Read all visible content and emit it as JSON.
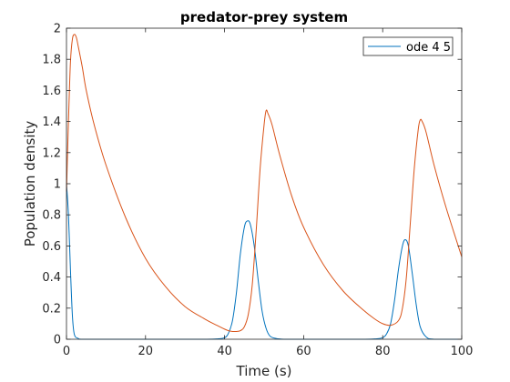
{
  "chart_data": {
    "type": "line",
    "title": "predator-prey system",
    "xlabel": "Time (s)",
    "ylabel": "Population density",
    "xlim": [
      0,
      100
    ],
    "ylim": [
      0,
      2
    ],
    "x_ticks": [
      "0",
      "20",
      "40",
      "60",
      "80",
      "100"
    ],
    "y_ticks": [
      "0",
      "0.2",
      "0.4",
      "0.6",
      "0.8",
      "1",
      "1.2",
      "1.4",
      "1.6",
      "1.8",
      "2"
    ],
    "grid": false,
    "legend_position": "top-right",
    "legend_entries": [
      "ode 4 5"
    ],
    "series": [
      {
        "name": "ode 4 5",
        "color": "#0072BD",
        "x": [
          0,
          0.5,
          1,
          1.5,
          2,
          3,
          4,
          10,
          20,
          30,
          35,
          38,
          40,
          41,
          42,
          43,
          44,
          45,
          45.7,
          46.5,
          47.5,
          48.5,
          49.5,
          50.5,
          51.5,
          53,
          55,
          60,
          70,
          75,
          78,
          80,
          81,
          82,
          83,
          84,
          85,
          85.7,
          86.5,
          87.5,
          88.5,
          89.5,
          91,
          93,
          100
        ],
        "values": [
          1.0,
          0.8,
          0.45,
          0.15,
          0.03,
          0.005,
          0,
          0,
          0,
          0,
          0,
          0.002,
          0.01,
          0.04,
          0.12,
          0.3,
          0.55,
          0.72,
          0.76,
          0.74,
          0.6,
          0.38,
          0.18,
          0.07,
          0.02,
          0.005,
          0,
          0,
          0,
          0,
          0.002,
          0.01,
          0.035,
          0.1,
          0.25,
          0.45,
          0.6,
          0.64,
          0.6,
          0.42,
          0.22,
          0.08,
          0.015,
          0,
          0
        ]
      },
      {
        "color": "#D95319",
        "x": [
          0,
          0.5,
          1,
          1.5,
          2,
          2.5,
          3,
          4,
          5,
          7,
          10,
          15,
          20,
          25,
          30,
          35,
          38,
          40,
          41,
          42,
          43,
          44,
          45,
          46,
          47,
          48,
          49,
          50,
          50.5,
          51,
          52,
          54,
          57,
          60,
          65,
          70,
          75,
          78,
          80,
          82,
          84,
          85,
          86,
          87,
          88,
          89,
          89.5,
          90,
          91,
          93,
          96,
          100
        ],
        "values": [
          0.95,
          1.4,
          1.78,
          1.93,
          1.96,
          1.94,
          1.88,
          1.75,
          1.6,
          1.38,
          1.12,
          0.78,
          0.52,
          0.34,
          0.21,
          0.13,
          0.09,
          0.065,
          0.055,
          0.05,
          0.05,
          0.055,
          0.08,
          0.16,
          0.35,
          0.7,
          1.1,
          1.38,
          1.47,
          1.45,
          1.38,
          1.18,
          0.92,
          0.72,
          0.48,
          0.31,
          0.19,
          0.13,
          0.1,
          0.09,
          0.12,
          0.2,
          0.4,
          0.75,
          1.1,
          1.35,
          1.41,
          1.4,
          1.33,
          1.12,
          0.85,
          0.53
        ]
      }
    ]
  }
}
